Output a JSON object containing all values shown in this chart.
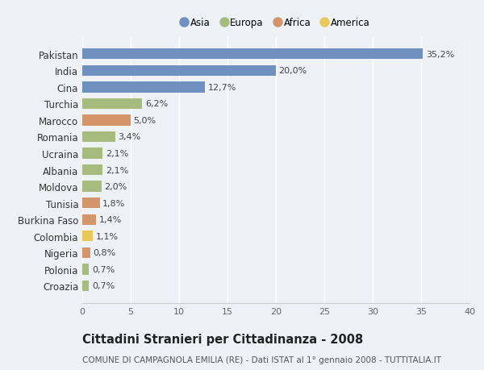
{
  "countries": [
    "Pakistan",
    "India",
    "Cina",
    "Turchia",
    "Marocco",
    "Romania",
    "Ucraina",
    "Albania",
    "Moldova",
    "Tunisia",
    "Burkina Faso",
    "Colombia",
    "Nigeria",
    "Polonia",
    "Croazia"
  ],
  "values": [
    35.2,
    20.0,
    12.7,
    6.2,
    5.0,
    3.4,
    2.1,
    2.1,
    2.0,
    1.8,
    1.4,
    1.1,
    0.8,
    0.7,
    0.7
  ],
  "labels": [
    "35,2%",
    "20,0%",
    "12,7%",
    "6,2%",
    "5,0%",
    "3,4%",
    "2,1%",
    "2,1%",
    "2,0%",
    "1,8%",
    "1,4%",
    "1,1%",
    "0,8%",
    "0,7%",
    "0,7%"
  ],
  "continents": [
    "Asia",
    "Asia",
    "Asia",
    "Europa",
    "Africa",
    "Europa",
    "Europa",
    "Europa",
    "Europa",
    "Africa",
    "Africa",
    "America",
    "Africa",
    "Europa",
    "Europa"
  ],
  "continent_colors": {
    "Asia": "#7090c0",
    "Europa": "#a8bb7e",
    "Africa": "#d4956a",
    "America": "#e8c85a"
  },
  "legend_order": [
    "Asia",
    "Europa",
    "Africa",
    "America"
  ],
  "xlim": [
    0,
    40
  ],
  "xticks": [
    0,
    5,
    10,
    15,
    20,
    25,
    30,
    35,
    40
  ],
  "title": "Cittadini Stranieri per Cittadinanza - 2008",
  "subtitle": "COMUNE DI CAMPAGNOLA EMILIA (RE) - Dati ISTAT al 1° gennaio 2008 - TUTTITALIA.IT",
  "background_color": "#eef2f7",
  "bar_height": 0.65,
  "grid_color": "#ffffff",
  "label_fontsize": 8,
  "ytick_fontsize": 8.5,
  "xtick_fontsize": 8,
  "title_fontsize": 10.5,
  "subtitle_fontsize": 7.5
}
